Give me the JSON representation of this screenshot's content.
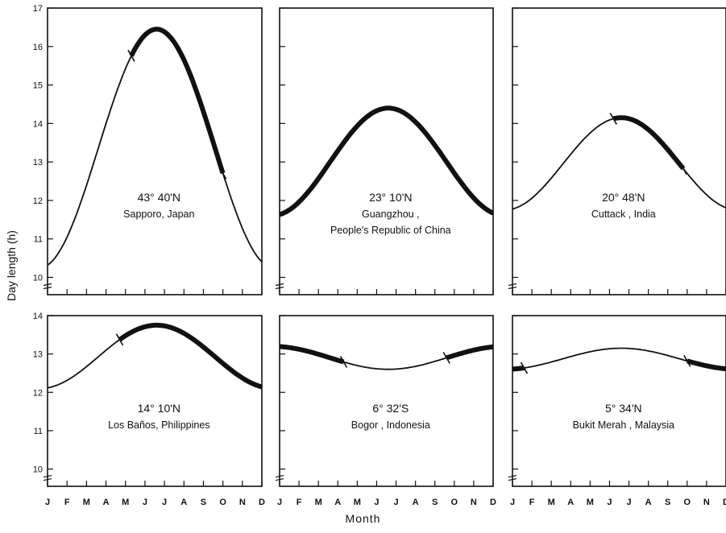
{
  "figure": {
    "y_axis_label": "Day length (h)",
    "x_axis_label": "Month"
  },
  "chart_data": [
    {
      "type": "line",
      "annotation_line1": "43° 40'N",
      "annotation_line2": "Sapporo, Japan",
      "annotation_line3": "",
      "x": [
        "J",
        "F",
        "M",
        "A",
        "M",
        "J",
        "J",
        "A",
        "S",
        "O",
        "N",
        "D"
      ],
      "x_positions": [
        0,
        1,
        2,
        3,
        4,
        5,
        6,
        7,
        8,
        9,
        10,
        11
      ],
      "y_ticks": [
        10,
        11,
        12,
        13,
        14,
        15,
        16,
        17
      ],
      "ylim": [
        9.55,
        17
      ],
      "min": 10.25,
      "max": 16.45,
      "peak_x": 5.6,
      "bold_range": [
        4.3,
        9.0
      ],
      "tick_marks": [
        4.3,
        9.0
      ]
    },
    {
      "type": "line",
      "annotation_line1": "23° 10'N",
      "annotation_line2": "Guangzhou ,",
      "annotation_line3": "People's Republic of China",
      "x": [
        "J",
        "F",
        "M",
        "A",
        "M",
        "J",
        "J",
        "A",
        "S",
        "O",
        "N",
        "D"
      ],
      "x_positions": [
        0,
        1,
        2,
        3,
        4,
        5,
        6,
        7,
        8,
        9,
        10,
        11
      ],
      "y_ticks": [
        10,
        11,
        12,
        13,
        14,
        15,
        16,
        17
      ],
      "ylim": [
        9.55,
        17
      ],
      "min": 11.6,
      "max": 14.4,
      "peak_x": 5.6,
      "bold_range": [
        0,
        12
      ],
      "tick_marks": []
    },
    {
      "type": "line",
      "annotation_line1": "20° 48'N",
      "annotation_line2": "Cuttack , India",
      "annotation_line3": "",
      "x": [
        "J",
        "F",
        "M",
        "A",
        "M",
        "J",
        "J",
        "A",
        "S",
        "O",
        "N",
        "D"
      ],
      "x_positions": [
        0,
        1,
        2,
        3,
        4,
        5,
        6,
        7,
        8,
        9,
        10,
        11
      ],
      "y_ticks": [
        10,
        11,
        12,
        13,
        14,
        15,
        16,
        17
      ],
      "ylim": [
        9.55,
        17
      ],
      "min": 11.75,
      "max": 14.15,
      "peak_x": 5.6,
      "bold_range": [
        5.2,
        8.8
      ],
      "tick_marks": [
        5.2,
        8.8
      ]
    },
    {
      "type": "line",
      "annotation_line1": "14° 10'N",
      "annotation_line2": "Los Baños, Philippines",
      "annotation_line3": "",
      "x": [
        "J",
        "F",
        "M",
        "A",
        "M",
        "J",
        "J",
        "A",
        "S",
        "O",
        "N",
        "D"
      ],
      "x_positions": [
        0,
        1,
        2,
        3,
        4,
        5,
        6,
        7,
        8,
        9,
        10,
        11
      ],
      "y_ticks": [
        10,
        11,
        12,
        13,
        14
      ],
      "ylim": [
        9.55,
        14
      ],
      "min": 12.1,
      "max": 13.75,
      "peak_x": 5.6,
      "bold_range": [
        3.7,
        12
      ],
      "tick_marks": [
        3.7
      ]
    },
    {
      "type": "line",
      "annotation_line1": "6° 32'S",
      "annotation_line2": "Bogor , Indonesia",
      "annotation_line3": "",
      "x": [
        "J",
        "F",
        "M",
        "A",
        "M",
        "J",
        "J",
        "A",
        "S",
        "O",
        "N",
        "D"
      ],
      "x_positions": [
        0,
        1,
        2,
        3,
        4,
        5,
        6,
        7,
        8,
        9,
        10,
        11
      ],
      "y_ticks": [
        10,
        11,
        12,
        13,
        14
      ],
      "ylim": [
        9.55,
        14
      ],
      "min": 12.6,
      "max": 13.2,
      "min_x": 5.6,
      "bold_range": [
        0,
        3.3
      ],
      "bold_range_2": [
        8.6,
        12
      ],
      "tick_marks": [
        3.3,
        8.6
      ]
    },
    {
      "type": "line",
      "annotation_line1": "5° 34'N",
      "annotation_line2": "Bukit Merah , Malaysia",
      "annotation_line3": "",
      "x": [
        "J",
        "F",
        "M",
        "A",
        "M",
        "J",
        "J",
        "A",
        "S",
        "O",
        "N",
        "D"
      ],
      "x_positions": [
        0,
        1,
        2,
        3,
        4,
        5,
        6,
        7,
        8,
        9,
        10,
        11
      ],
      "y_ticks": [
        10,
        11,
        12,
        13,
        14
      ],
      "ylim": [
        9.55,
        14
      ],
      "min": 12.6,
      "max": 13.15,
      "peak_x": 5.6,
      "bold_range": [
        0,
        0.6
      ],
      "bold_range_2": [
        9.0,
        12
      ],
      "tick_marks": [
        0.6,
        9.0
      ]
    }
  ]
}
